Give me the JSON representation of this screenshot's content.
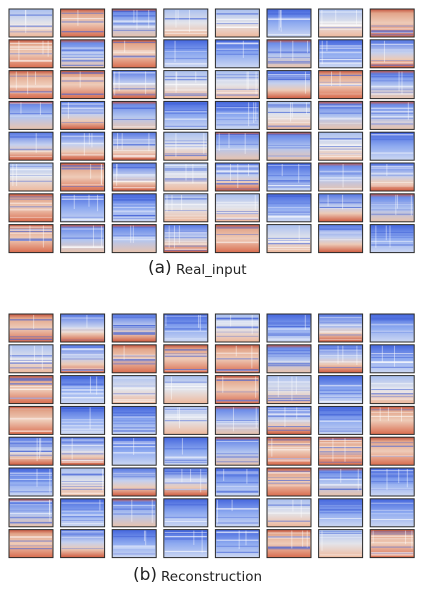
{
  "figure": {
    "panels": [
      {
        "tag": "(a)",
        "caption": "Real_input"
      },
      {
        "tag": "(b)",
        "caption": "Reconstruction"
      }
    ]
  }
}
